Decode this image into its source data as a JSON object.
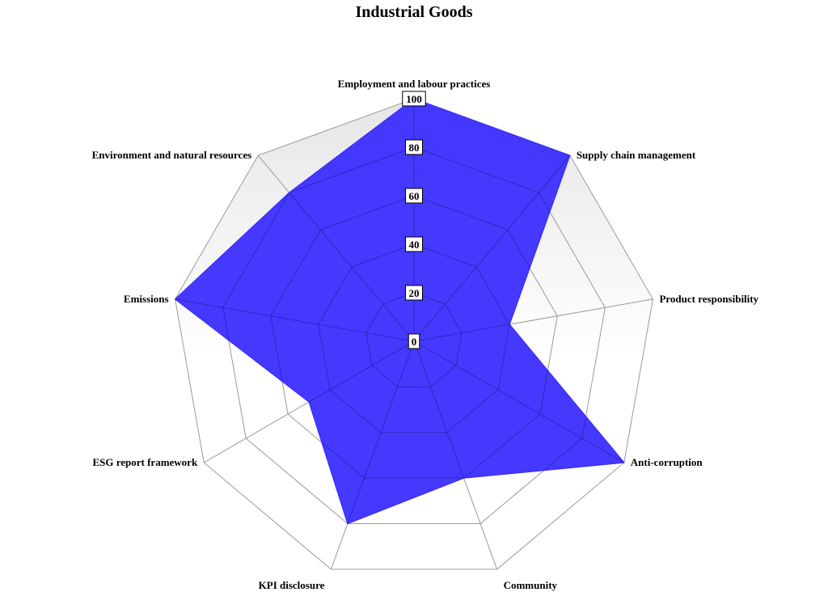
{
  "chart_data": {
    "type": "radar",
    "title": "Industrial Goods",
    "axes": [
      "Employment and labour practices",
      "Supply chain management",
      "Product responsibility",
      "Anti-corruption",
      "Community",
      "KPI disclosure",
      "ESG report framework",
      "Emissions",
      "Environment and natural resources"
    ],
    "series": [
      {
        "values": [
          100,
          100,
          40,
          100,
          60,
          80,
          50,
          100,
          80
        ]
      }
    ],
    "rlim": [
      0,
      100
    ],
    "ticks": [
      "0",
      "20",
      "40",
      "60",
      "80",
      "100"
    ],
    "grid": true,
    "legend": "none",
    "colors": {
      "series_fill": "#3b2eff",
      "grid_line": "#9a9a9a",
      "shade_top": "#e6e6e6",
      "shade_bottom": "#ffffff"
    }
  }
}
